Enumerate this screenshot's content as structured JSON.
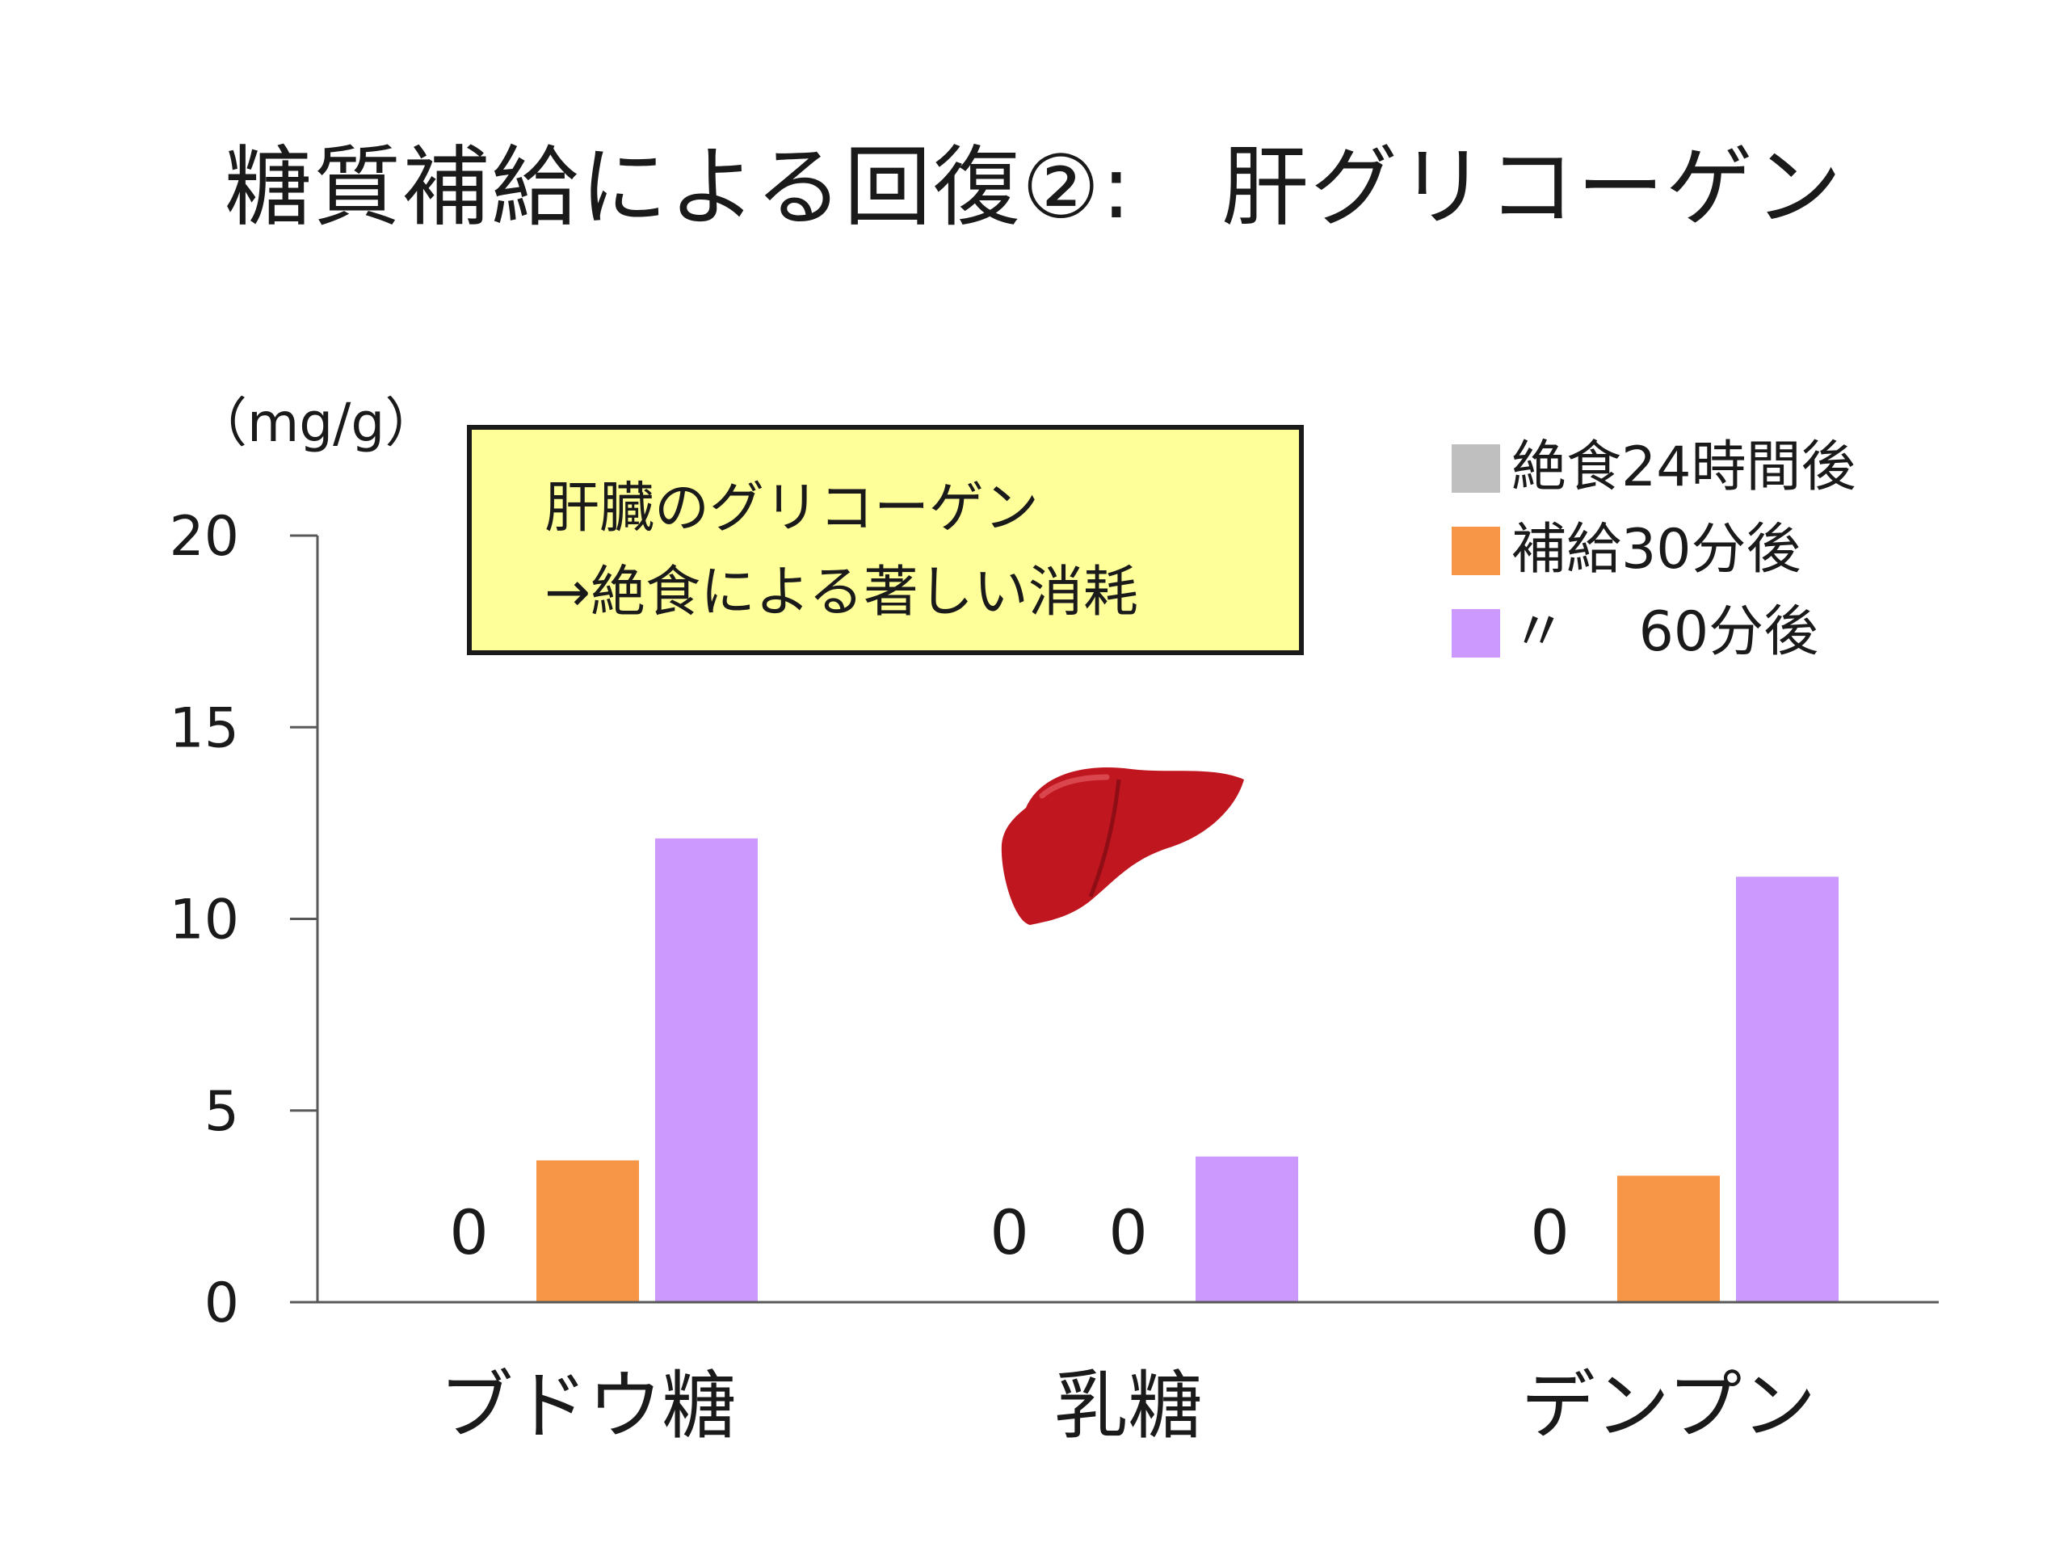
{
  "slide": {
    "title": "糖質補給による回復②:　肝グリコーゲン",
    "note_lines": [
      "肝臓のグリコーゲン",
      "→絶食による著しい消耗"
    ]
  },
  "chart_data": {
    "type": "bar",
    "title": "",
    "xlabel": "",
    "ylabel": "（mg/g）",
    "ylim": [
      0,
      20
    ],
    "yticks": [
      "0",
      "5",
      "10",
      "15",
      "20"
    ],
    "categories": [
      "ブドウ糖",
      "乳糖",
      "デンプン"
    ],
    "series": [
      {
        "name": "絶食24時間後",
        "color": "#bfbfbf",
        "values": [
          0,
          0,
          0
        ],
        "labels": [
          "0",
          "0",
          "0"
        ]
      },
      {
        "name": "補給30分後",
        "color": "#f79646",
        "values": [
          3.7,
          0,
          3.3
        ],
        "labels": [
          "",
          "0",
          ""
        ]
      },
      {
        "name": "〃　 60分後",
        "color": "#cc99ff",
        "values": [
          12.1,
          3.8,
          11.1
        ],
        "labels": [
          "",
          "",
          ""
        ]
      }
    ],
    "grid": false,
    "legend_position": "top-right"
  },
  "icons": {
    "liver": "liver-illustration"
  }
}
